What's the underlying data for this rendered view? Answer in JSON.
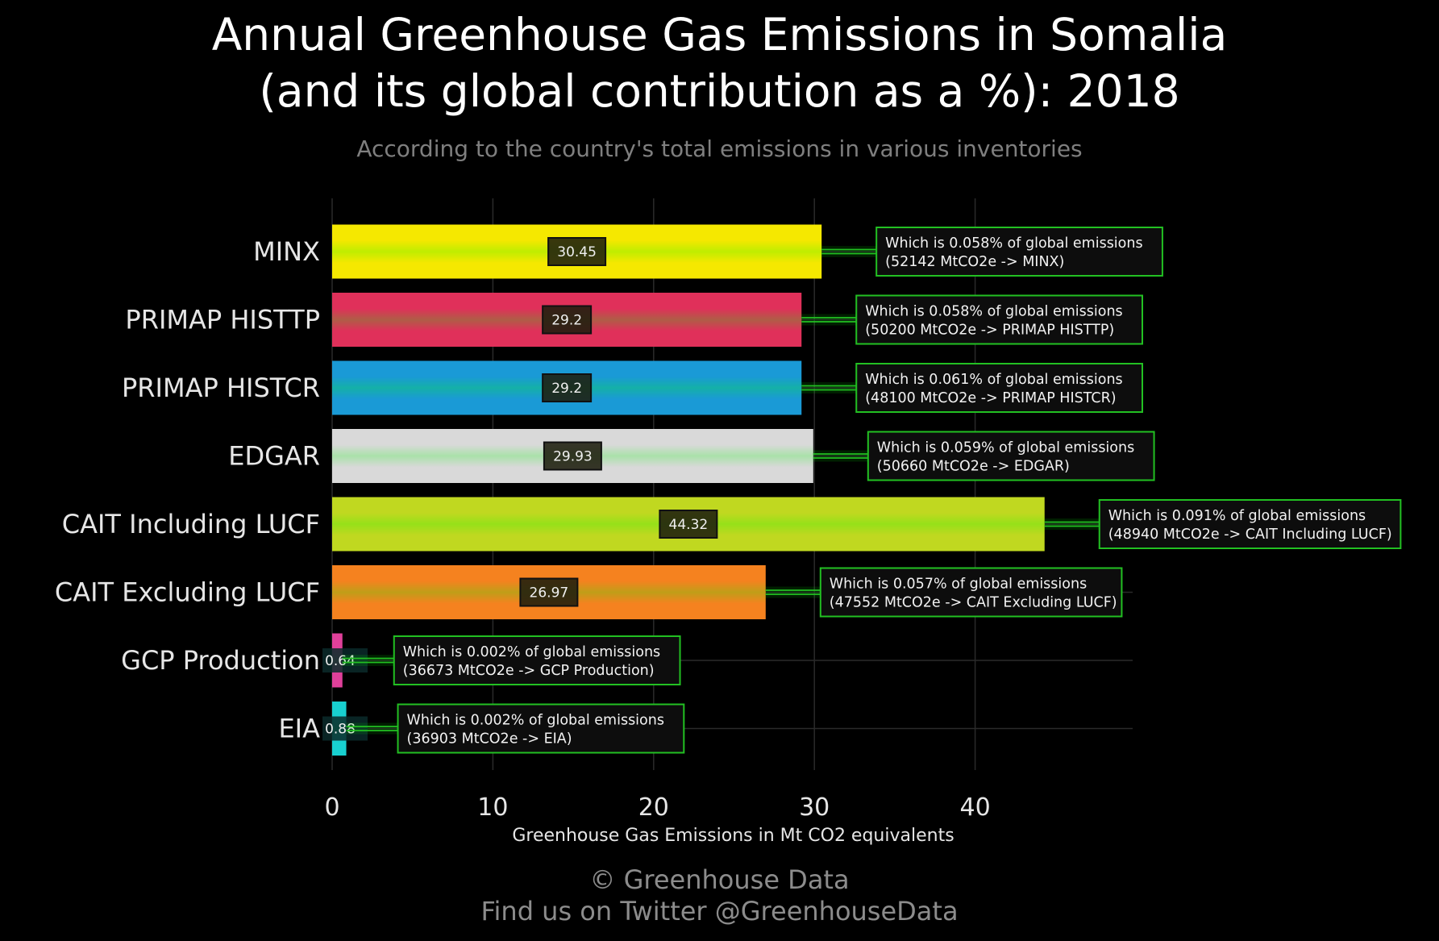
{
  "title_line1": "Annual Greenhouse Gas Emissions in Somalia",
  "title_line2": "(and its global contribution as a %): 2018",
  "subtitle": "According to the country's total emissions in various inventories",
  "footer_line1": "© Greenhouse Data",
  "footer_line2": "Find us on Twitter @GreenhouseData",
  "colors": {
    "background": "#000000",
    "grid": "#2a2a2a",
    "annotation_border": "#22c022",
    "annotation_bg": "#0d0d0d"
  },
  "chart_data": {
    "type": "bar",
    "orientation": "horizontal",
    "title": "Annual Greenhouse Gas Emissions in Somalia (and its global contribution as a %): 2018",
    "subtitle": "According to the country's total emissions in various inventories",
    "xlabel": "Greenhouse Gas Emissions in Mt CO2 equivalents",
    "ylabel": "",
    "xlim": [
      0,
      50
    ],
    "xticks": [
      0,
      10,
      20,
      30,
      40
    ],
    "grid": true,
    "categories": [
      "MINX",
      "PRIMAP HISTTP",
      "PRIMAP HISTCR",
      "EDGAR",
      "CAIT Including LUCF",
      "CAIT Excluding LUCF",
      "GCP Production",
      "EIA"
    ],
    "values": [
      30.45,
      29.2,
      29.2,
      29.93,
      44.32,
      26.97,
      0.64,
      0.88
    ],
    "value_labels": [
      "30.45",
      "29.2",
      "29.2",
      "29.93",
      "44.32",
      "26.97",
      "0.64",
      "0.88"
    ],
    "bar_colors": [
      "#f5e800",
      "#e0305a",
      "#1a9ad6",
      "#d9d9d9",
      "#c0d820",
      "#f5821f",
      "#e0409a",
      "#18d0d0"
    ],
    "annotations": [
      {
        "line1": "Which is 0.058% of global emissions",
        "line2": "(52142 MtCO2e -> MINX)"
      },
      {
        "line1": "Which is 0.058% of global emissions",
        "line2": "(50200 MtCO2e -> PRIMAP HISTTP)"
      },
      {
        "line1": "Which is 0.061% of global emissions",
        "line2": "(48100 MtCO2e -> PRIMAP HISTCR)"
      },
      {
        "line1": "Which is 0.059% of global emissions",
        "line2": "(50660 MtCO2e -> EDGAR)"
      },
      {
        "line1": "Which is 0.091% of global emissions",
        "line2": "(48940 MtCO2e -> CAIT Including LUCF)"
      },
      {
        "line1": "Which is 0.057% of global emissions",
        "line2": "(47552 MtCO2e -> CAIT Excluding LUCF)"
      },
      {
        "line1": "Which is 0.002% of global emissions",
        "line2": "(36673 MtCO2e -> GCP Production)"
      },
      {
        "line1": "Which is 0.002% of global emissions",
        "line2": "(36903 MtCO2e -> EIA)"
      }
    ]
  }
}
